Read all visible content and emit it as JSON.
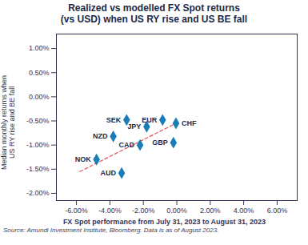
{
  "chart_data": {
    "type": "scatter",
    "title": "Realized vs modelled FX Spot returns\n(vs USD) when US RY rise and US BE fall",
    "xlabel": "FX Spot performance from July 31, 2023 to August 31, 2023",
    "ylabel": "Median monthly returns when\nUS RY  rise and BE fall",
    "source": "Source: Amundi Investment Institute, Bloomberg. Data is as of August 2023.",
    "point_labels": [
      "EUR",
      "CHF",
      "GBP",
      "JPY",
      "CAD",
      "SEK",
      "NZD",
      "AUD",
      "NOK"
    ],
    "x": [
      -0.0085,
      -0.0005,
      -0.002,
      -0.018,
      -0.022,
      -0.03,
      -0.038,
      -0.033,
      -0.048
    ],
    "values": [
      -0.0048,
      -0.0055,
      -0.0095,
      -0.0062,
      -0.01,
      -0.0048,
      -0.0082,
      -0.0158,
      -0.013
    ],
    "color": "#1b7db8",
    "marker": "diamond",
    "trend": {
      "x": [
        -0.058,
        -0.0005
      ],
      "values": [
        -0.0155,
        -0.0055
      ],
      "color": "#e05050",
      "line_style": "dashed"
    },
    "xlim": [
      -0.072,
      0.072
    ],
    "ylim": [
      -0.0215,
      0.013
    ],
    "xticks": [
      {
        "value": -0.06,
        "label": "-6.00%"
      },
      {
        "value": -0.04,
        "label": "-4.00%"
      },
      {
        "value": -0.02,
        "label": "-2.00%"
      },
      {
        "value": 0.0,
        "label": "0.00%"
      },
      {
        "value": 0.02,
        "label": "2.00%"
      },
      {
        "value": 0.04,
        "label": "4.00%"
      },
      {
        "value": 0.06,
        "label": "6.00%"
      }
    ],
    "yticks": [
      {
        "value": -0.02,
        "label": "-2.00%"
      },
      {
        "value": -0.015,
        "label": "-1.50%"
      },
      {
        "value": -0.01,
        "label": "-1.00%"
      },
      {
        "value": -0.005,
        "label": "-0.50%"
      },
      {
        "value": 0.0,
        "label": "0.00%"
      },
      {
        "value": 0.005,
        "label": "0.50%"
      },
      {
        "value": 0.01,
        "label": "1.00%"
      }
    ],
    "grid": false
  }
}
